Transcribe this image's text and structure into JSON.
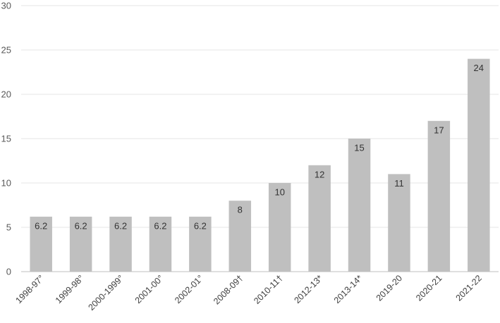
{
  "chart_data": {
    "type": "bar",
    "title": "",
    "xlabel": "",
    "ylabel": "",
    "ylim": [
      0,
      30
    ],
    "yticks": [
      0,
      5,
      10,
      15,
      20,
      25,
      30
    ],
    "grid": true,
    "legend": "none",
    "categories": [
      "1998-97°",
      "1999-98°",
      "2000-1999°",
      "2001-00°",
      "2002-01°",
      "2008-09†",
      "2010-11†",
      "2012-13*",
      "2013-14*",
      "2019-20",
      "2020-21",
      "2021-22"
    ],
    "values": [
      6.2,
      6.2,
      6.2,
      6.2,
      6.2,
      8,
      10,
      12,
      15,
      11,
      17,
      24
    ],
    "data_labels": [
      "6.2",
      "6.2",
      "6.2",
      "6.2",
      "6.2",
      "8",
      "10",
      "12",
      "15",
      "11",
      "17",
      "24"
    ],
    "colors": {
      "bar": "#bfbfbf",
      "grid": "#e6e6e6",
      "axis": "#bfbfbf"
    }
  }
}
